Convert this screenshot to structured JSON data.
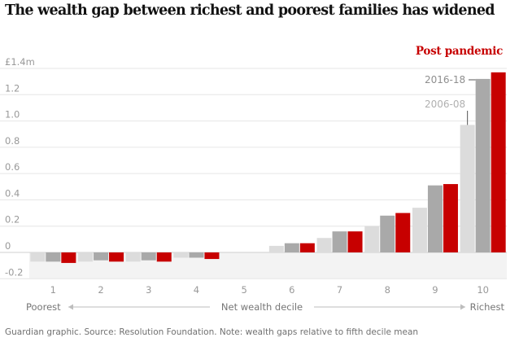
{
  "title": "The wealth gap between richest and poorest families has widened",
  "footer": "Guardian graphic. Source: Resolution Foundation. Note: wealth gaps relative to fifth decile mean",
  "colors": {
    "2006-08": "#dcdcdc",
    "2016-18": "#a9a9a9",
    "Post pandemic": "#c70000",
    "tick_text": "#999999",
    "label_text": "#767676",
    "grid": "#e6e6e6",
    "negative_band": "#f3f3f3"
  },
  "chart_data": {
    "type": "bar",
    "title": "The wealth gap between richest and poorest families has widened",
    "categories": [
      "1",
      "2",
      "3",
      "4",
      "5",
      "6",
      "7",
      "8",
      "9",
      "10"
    ],
    "series": [
      {
        "name": "2006-08",
        "values": [
          -0.07,
          -0.07,
          -0.07,
          -0.04,
          0.0,
          0.05,
          0.11,
          0.2,
          0.34,
          0.97
        ]
      },
      {
        "name": "2016-18",
        "values": [
          -0.07,
          -0.06,
          -0.06,
          -0.04,
          0.0,
          0.07,
          0.16,
          0.28,
          0.51,
          1.32
        ]
      },
      {
        "name": "Post pandemic",
        "values": [
          -0.08,
          -0.07,
          -0.07,
          -0.05,
          0.0,
          0.07,
          0.16,
          0.3,
          0.52,
          1.37
        ]
      }
    ],
    "y_ticks": [
      "£1.4m",
      "1.2",
      "1.0",
      "0.8",
      "0.6",
      "0.4",
      "0.2",
      "0",
      "-0.2"
    ],
    "y_tick_values": [
      1.4,
      1.2,
      1.0,
      0.8,
      0.6,
      0.4,
      0.2,
      0.0,
      -0.2
    ],
    "ylim": [
      -0.2,
      1.4
    ],
    "xlabel": "Net wealth decile",
    "x_left_label": "Poorest",
    "x_right_label": "Richest",
    "grid": true,
    "legend": "annotations on decile 10"
  }
}
